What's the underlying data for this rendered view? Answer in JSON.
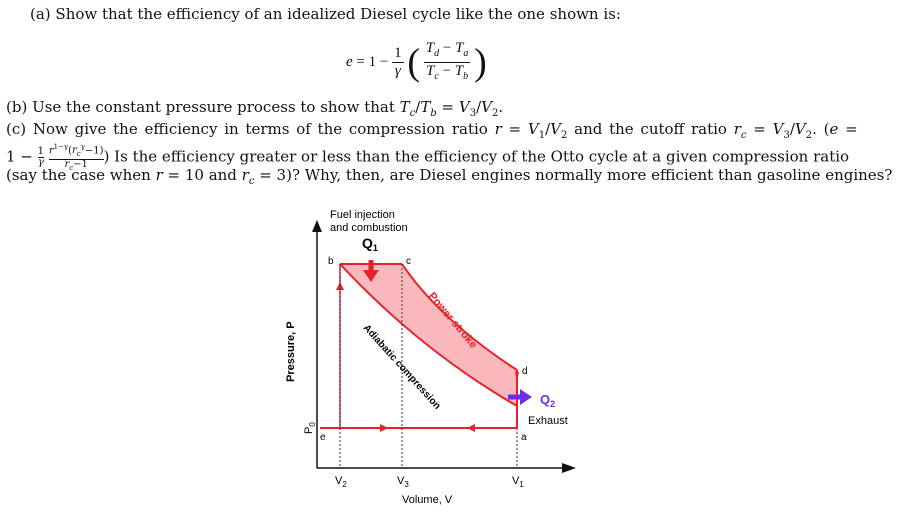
{
  "problem": {
    "part_a": "(a) Show that the efficiency of an idealized Diesel cycle like the one shown is:",
    "equation": {
      "lhs": "e = 1 −",
      "frac1_num": "1",
      "frac1_den": "γ",
      "frac2_num": "T_d − T_a",
      "frac2_den": "T_c − T_b"
    },
    "part_b": "(b) Use the constant pressure process to show that Tc/Tb = V3/V2.",
    "part_c_line1": "(c) Now give the efficiency in terms of the compression ratio r = V1/V2 and the cutoff ratio rc = V3/V2. (e =",
    "part_c_line2": "1 − (1/γ)(r^(1−γ)(rc^γ −1)/(rc−1))  Is the efficiency greater or less than the efficiency of the Otto cycle at a given compression ratio",
    "part_c_line3": "(say the case when r = 10 and rc = 3)? Why, then, are Diesel engines normally more efficient than gasoline engines?"
  },
  "diagram": {
    "fuel_label_1": "Fuel injection",
    "fuel_label_2": "and combustion",
    "q1": "Q",
    "q1_sub": "1",
    "q2": "Q",
    "q2_sub": "2",
    "exhaust": "Exhaust",
    "power_stroke": "Power stroke",
    "adiabatic": "Adiabatic compression",
    "pressure_axis": "Pressure, P",
    "volume_axis": "Volume, V",
    "p0": "P",
    "p0_sub": "0",
    "points": {
      "a": "a",
      "b": "b",
      "c": "c",
      "d": "d",
      "e": "e"
    },
    "v2": "V",
    "v2_sub": "2",
    "v3": "V",
    "v3_sub": "3",
    "v1": "V",
    "v1_sub": "1",
    "colors": {
      "cycle": "#e8202a",
      "fill": "#f9b8bc",
      "q2_arrow": "#6a2ee8",
      "q2_text": "#6a2ee8"
    }
  }
}
